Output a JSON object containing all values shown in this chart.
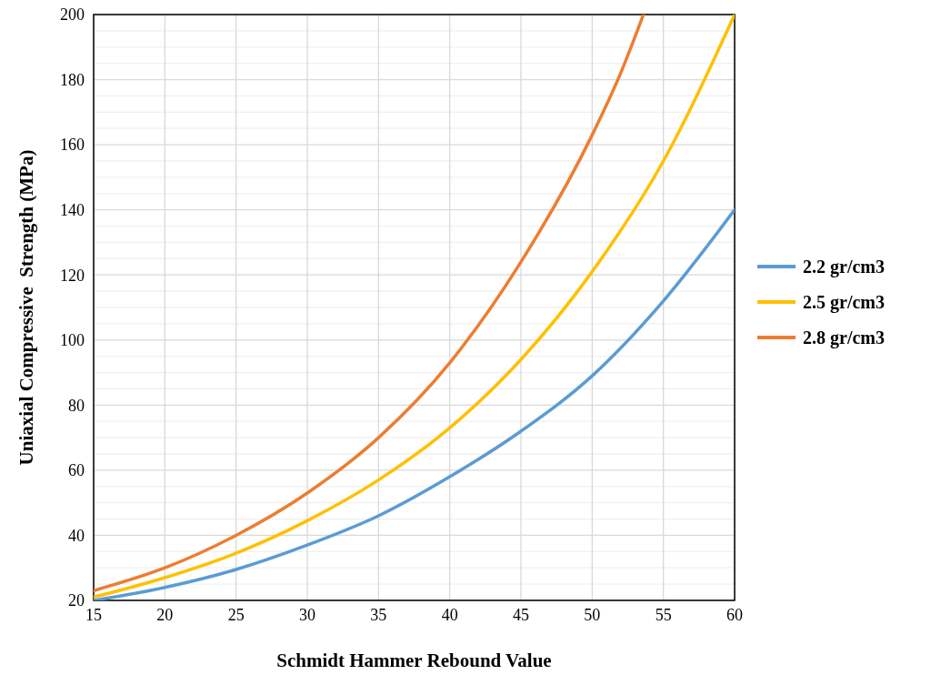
{
  "chart_data": {
    "type": "line",
    "xlabel": "Schmidt Hammer Rebound Value",
    "ylabel": "Uniaxial Compressive  Strength (MPa)",
    "series": [
      {
        "name": "2.2 gr/cm3",
        "color": "#5b9bd5",
        "x": [
          15,
          20,
          25,
          30,
          35,
          40,
          45,
          50,
          55,
          60
        ],
        "values": [
          20,
          24,
          29.5,
          37,
          46,
          58,
          72,
          89,
          112,
          140
        ]
      },
      {
        "name": "2.5 gr/cm3",
        "color": "#ffc000",
        "x": [
          15,
          20,
          25,
          30,
          35,
          40,
          45,
          50,
          55,
          60
        ],
        "values": [
          21,
          27,
          34.5,
          44.5,
          57,
          73,
          94,
          121,
          155,
          200
        ]
      },
      {
        "name": "2.8 gr/cm3",
        "color": "#ed7d31",
        "x": [
          15,
          20,
          25,
          30,
          35,
          40,
          45,
          50,
          52,
          53.6
        ],
        "values": [
          23,
          30,
          40,
          53,
          70,
          93,
          124,
          163,
          182,
          200
        ]
      }
    ],
    "xlim": [
      15,
      60
    ],
    "xticks": [
      15,
      20,
      25,
      30,
      35,
      40,
      45,
      50,
      55,
      60
    ],
    "ylim": [
      20,
      200
    ],
    "yticks": [
      20,
      {
        "value": 25,
        "label": null
      },
      {
        "value": 30,
        "label": null
      },
      {
        "value": 35,
        "label": null
      },
      40,
      {
        "value": 45,
        "label": null
      },
      {
        "value": 50,
        "label": null
      },
      {
        "value": 55,
        "label": null
      },
      60,
      {
        "value": 65,
        "label": null
      },
      {
        "value": 70,
        "label": null
      },
      {
        "value": 75,
        "label": null
      },
      80,
      {
        "value": 85,
        "label": null
      },
      {
        "value": 90,
        "label": null
      },
      {
        "value": 95,
        "label": null
      },
      100,
      {
        "value": 105,
        "label": null
      },
      {
        "value": 110,
        "label": null
      },
      {
        "value": 115,
        "label": null
      },
      120,
      {
        "value": 125,
        "label": null
      },
      {
        "value": 130,
        "label": null
      },
      {
        "value": 135,
        "label": null
      },
      140,
      {
        "value": 145,
        "label": null
      },
      {
        "value": 150,
        "label": null
      },
      {
        "value": 155,
        "label": null
      },
      160,
      {
        "value": 165,
        "label": null
      },
      {
        "value": 170,
        "label": null
      },
      {
        "value": 175,
        "label": null
      },
      180,
      {
        "value": 185,
        "label": null
      },
      {
        "value": 190,
        "label": null
      },
      {
        "value": 195,
        "label": null
      },
      200
    ],
    "grid": true,
    "legend": "right",
    "marker": "none",
    "line_style": "solid"
  }
}
